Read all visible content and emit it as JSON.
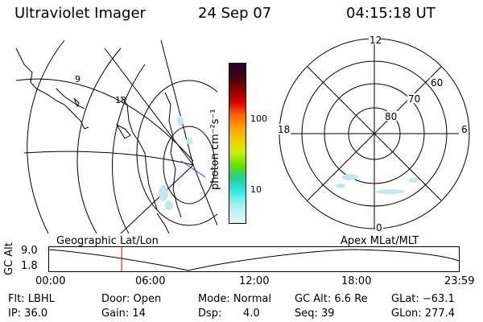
{
  "header": {
    "instrument": "Ultraviolet Imager",
    "date": "24 Sep 07",
    "time": "04:15:18 UT"
  },
  "geo_map": {
    "meridian_labels": [
      "9",
      "18"
    ]
  },
  "colorbar": {
    "unit_label": "photon cm⁻²s⁻¹",
    "ticks": [
      "100",
      "10"
    ]
  },
  "polar_plot": {
    "mlt_labels": [
      "12",
      "18",
      "6",
      "0"
    ],
    "lat_labels": [
      "60",
      "70",
      "80"
    ]
  },
  "timeline": {
    "left_title": "Geographic Lat/Lon",
    "right_title": "Apex MLat/MLT",
    "y_axis_label": "GC Alt",
    "y_ticks": [
      "9.0",
      "1.8"
    ],
    "x_ticks": [
      "00:00",
      "06:00",
      "12:00",
      "18:00",
      "23:59"
    ],
    "marker_hour": 4.25
  },
  "info": {
    "filter": "Flt: LBHL",
    "ip": "IP: 36.0",
    "door": "Door: Open",
    "gain": "Gain: 14",
    "mode": "Mode: Normal",
    "dsp_label": "Dsp:",
    "dsp_value": "4.0",
    "gc_alt": "GC Alt: 6.6 Re",
    "seq": "Seq: 39",
    "glat": "GLat: −63.1",
    "glon": "GLon: 277.4"
  },
  "colors": {
    "marker": "#e00000",
    "aurora": "#bfe9ec"
  }
}
